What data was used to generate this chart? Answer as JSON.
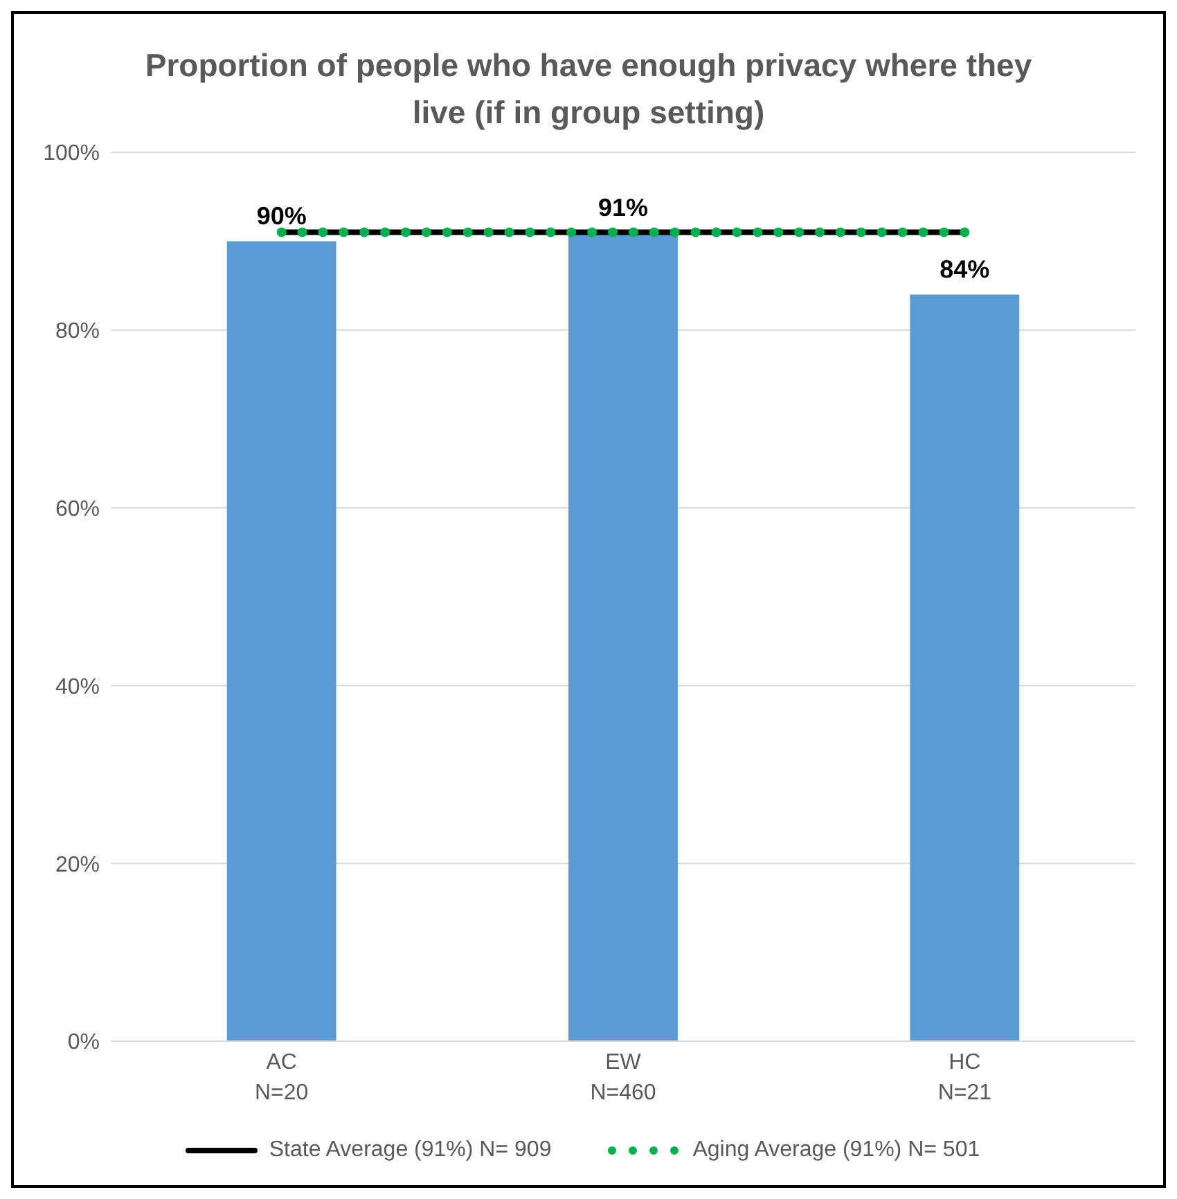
{
  "chart_data": {
    "type": "bar",
    "title": "Proportion of people who have enough privacy where they live (if in group setting)",
    "categories": [
      "AC\nN=20",
      "EW\nN=460",
      "HC\nN=21"
    ],
    "series": [
      {
        "type": "bar",
        "color": "#5b9bd5",
        "values": [
          90,
          91,
          84
        ],
        "value_labels": [
          "90%",
          "91%",
          "84%"
        ]
      },
      {
        "type": "line",
        "name": "State Average (91%) N= 909",
        "color": "#000000",
        "values": [
          91,
          91,
          91
        ],
        "line_style": "solid"
      },
      {
        "type": "line",
        "name": "Aging Average (91%) N= 501",
        "color": "#00b050",
        "values": [
          91,
          91,
          91
        ],
        "line_style": "dotted"
      }
    ],
    "ylim": [
      0,
      100
    ],
    "yticks": [
      {
        "value": 0,
        "label": "0%"
      },
      {
        "value": 20,
        "label": "20%"
      },
      {
        "value": 40,
        "label": "40%"
      },
      {
        "value": 60,
        "label": "60%"
      },
      {
        "value": 80,
        "label": "80%"
      },
      {
        "value": 100,
        "label": "100%"
      }
    ],
    "grid": "y",
    "legend": "bottom",
    "marker": "none"
  }
}
